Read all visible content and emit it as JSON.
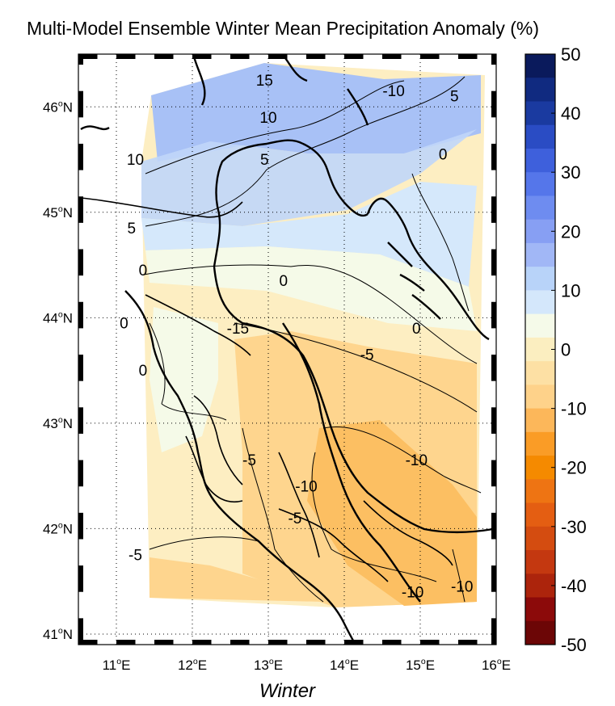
{
  "title": "Multi-Model Ensemble Winter Mean Precipitation Anomaly (%)",
  "xlabel": "Winter",
  "map": {
    "lon_range": [
      10.5,
      16.0
    ],
    "lat_range": [
      40.9,
      46.5
    ],
    "lon_ticks": [
      {
        "value": 11,
        "label": "11°E"
      },
      {
        "value": 12,
        "label": "12°E"
      },
      {
        "value": 13,
        "label": "13°E"
      },
      {
        "value": 14,
        "label": "14°E"
      },
      {
        "value": 15,
        "label": "15°E"
      },
      {
        "value": 16,
        "label": "16°E"
      }
    ],
    "lat_ticks": [
      {
        "value": 46,
        "label": "46°N"
      },
      {
        "value": 45,
        "label": "45°N"
      },
      {
        "value": 44,
        "label": "44°N"
      },
      {
        "value": 43,
        "label": "43°N"
      },
      {
        "value": 42,
        "label": "42°N"
      },
      {
        "value": 41,
        "label": "41°N"
      }
    ],
    "grid": "dotted",
    "contour_labels": [
      {
        "text": "15",
        "lon": 12.95,
        "lat": 46.2
      },
      {
        "text": "10",
        "lon": 13.0,
        "lat": 45.85
      },
      {
        "text": "-10",
        "lon": 14.65,
        "lat": 46.1
      },
      {
        "text": "5",
        "lon": 15.45,
        "lat": 46.05
      },
      {
        "text": "10",
        "lon": 11.25,
        "lat": 45.45
      },
      {
        "text": "5",
        "lon": 12.95,
        "lat": 45.45
      },
      {
        "text": "0",
        "lon": 15.3,
        "lat": 45.5
      },
      {
        "text": "5",
        "lon": 11.2,
        "lat": 44.8
      },
      {
        "text": "0",
        "lon": 11.35,
        "lat": 44.4
      },
      {
        "text": "0",
        "lon": 13.2,
        "lat": 44.3
      },
      {
        "text": "0",
        "lon": 11.1,
        "lat": 43.9
      },
      {
        "text": "-15",
        "lon": 12.6,
        "lat": 43.85
      },
      {
        "text": "0",
        "lon": 14.95,
        "lat": 43.85
      },
      {
        "text": "-5",
        "lon": 14.3,
        "lat": 43.6
      },
      {
        "text": "0",
        "lon": 11.35,
        "lat": 43.45
      },
      {
        "text": "-10",
        "lon": 14.95,
        "lat": 42.6
      },
      {
        "text": "-5",
        "lon": 12.75,
        "lat": 42.6
      },
      {
        "text": "-10",
        "lon": 13.5,
        "lat": 42.35
      },
      {
        "text": "-5",
        "lon": 13.35,
        "lat": 42.05
      },
      {
        "text": "-5",
        "lon": 11.25,
        "lat": 41.7
      },
      {
        "text": "-10",
        "lon": 14.9,
        "lat": 41.35
      },
      {
        "text": "-10",
        "lon": 15.55,
        "lat": 41.4
      }
    ]
  },
  "colorbar": {
    "min": -50,
    "max": 50,
    "step": 5,
    "tick_labels": [
      "50",
      "40",
      "30",
      "20",
      "10",
      "0",
      "-10",
      "-20",
      "-30",
      "-40",
      "-50"
    ],
    "colors_high_to_low": [
      "#0a1a5c",
      "#102a80",
      "#1a3aa0",
      "#2a4cc4",
      "#3e60dc",
      "#5576ea",
      "#6e8cf0",
      "#879ff3",
      "#a1b7f6",
      "#b8d3f9",
      "#d4e7fb",
      "#f5fae9",
      "#fbeec0",
      "#fde0a4",
      "#fed28a",
      "#fcb75a",
      "#fa9c26",
      "#f58a00",
      "#ee7413",
      "#e45e12",
      "#d44c10",
      "#c43810",
      "#ac240c",
      "#8c0a0a",
      "#6c0606"
    ]
  }
}
